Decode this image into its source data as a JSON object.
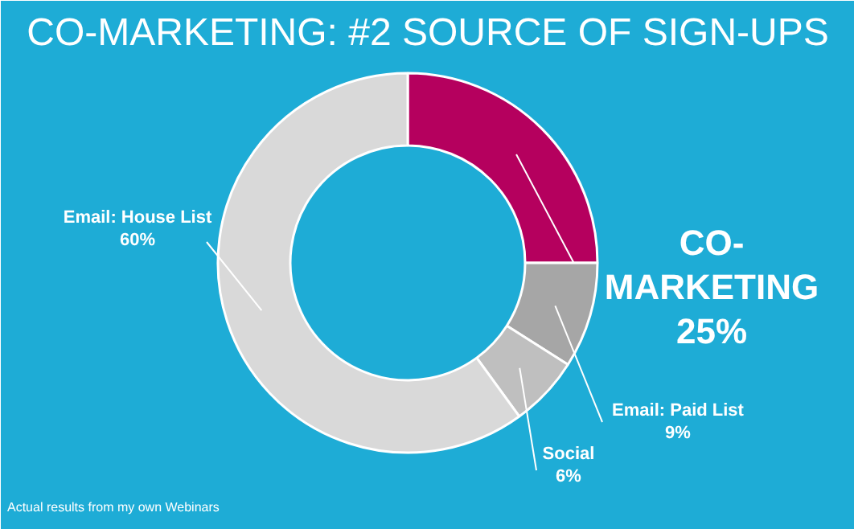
{
  "chart_data": {
    "type": "donut",
    "title": "CO-MARKETING: #2 SOURCE OF SIGN-UPS",
    "categories": [
      "CO-MARKETING",
      "Email: Paid List",
      "Social",
      "Email: House List"
    ],
    "values": [
      25,
      9,
      6,
      60
    ],
    "colors": [
      "#b5005e",
      "#a6a6a6",
      "#bfbfbf",
      "#d9d9d9"
    ],
    "value_labels": [
      "25%",
      "9%",
      "6%",
      "60%"
    ],
    "annotations": [
      "Actual results from my own Webinars"
    ]
  }
}
